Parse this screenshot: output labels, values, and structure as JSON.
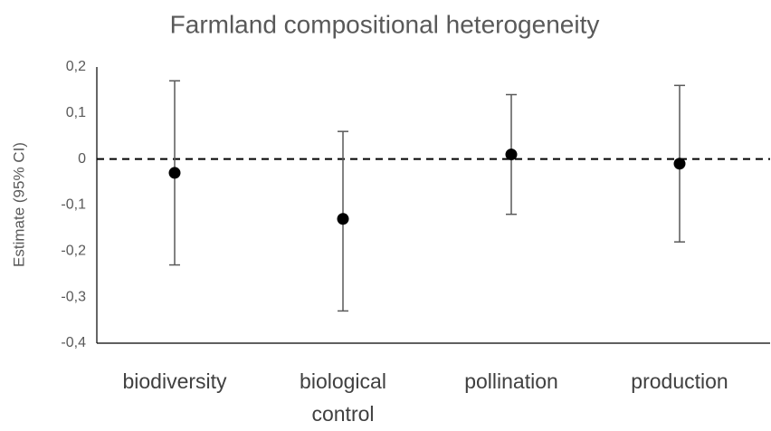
{
  "chart_data": {
    "type": "errorbar",
    "title": "Farmland compositional heterogeneity",
    "y_label": "Estimate (95% CI)",
    "categories": [
      "biodiversity",
      "biological control",
      "pollination",
      "production"
    ],
    "values": [
      -0.03,
      -0.13,
      0.01,
      -0.01
    ],
    "ci_lower": [
      -0.23,
      -0.33,
      -0.12,
      -0.18
    ],
    "ci_upper": [
      0.17,
      0.06,
      0.14,
      0.16
    ],
    "color": "#000000",
    "errorbar_color": "#595959",
    "hline": 0,
    "ylim": [
      -0.4,
      0.2
    ],
    "yticks": [
      {
        "value": -0.4,
        "label": "-0,4"
      },
      {
        "value": -0.3,
        "label": "-0,3"
      },
      {
        "value": -0.2,
        "label": "-0,2"
      },
      {
        "value": -0.1,
        "label": "-0,1"
      },
      0,
      {
        "value": 0.1,
        "label": "0,1"
      },
      {
        "value": 0.2,
        "label": "0,2"
      }
    ],
    "grid": false
  }
}
